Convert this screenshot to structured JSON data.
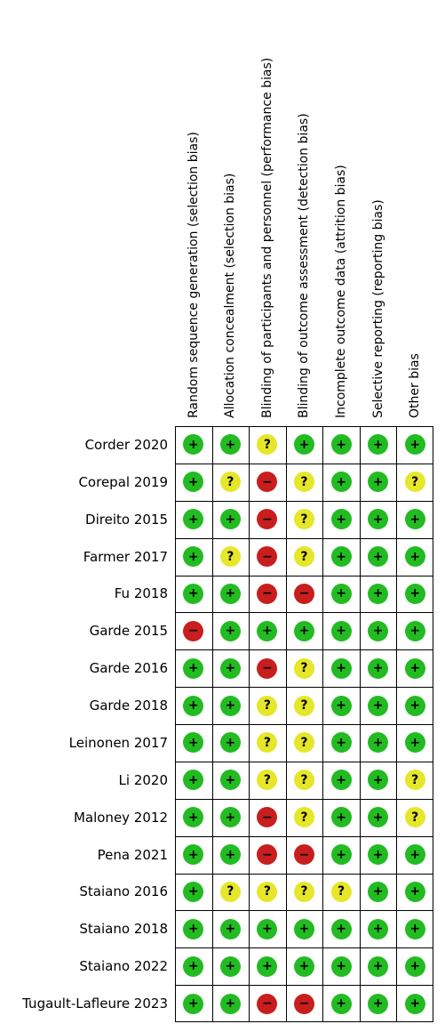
{
  "domains": [
    "Random sequence generation (selection bias)",
    "Allocation concealment (selection bias)",
    "Blinding of participants and personnel (performance bias)",
    "Blinding of outcome assessment (detection bias)",
    "Incomplete outcome data (attrition bias)",
    "Selective reporting (reporting bias)",
    "Other bias"
  ],
  "studies": [
    {
      "name": "Corder  2020",
      "ratings": [
        "low",
        "low",
        "unclear",
        "low",
        "low",
        "low",
        "low"
      ]
    },
    {
      "name": "Corepal 2019",
      "ratings": [
        "low",
        "unclear",
        "high",
        "unclear",
        "low",
        "low",
        "unclear"
      ]
    },
    {
      "name": "Direito  2015",
      "ratings": [
        "low",
        "low",
        "high",
        "unclear",
        "low",
        "low",
        "low"
      ]
    },
    {
      "name": "Farmer 2017",
      "ratings": [
        "low",
        "unclear",
        "high",
        "unclear",
        "low",
        "low",
        "low"
      ]
    },
    {
      "name": "Fu 2018",
      "ratings": [
        "low",
        "low",
        "high",
        "high",
        "low",
        "low",
        "low"
      ]
    },
    {
      "name": "Garde 2015",
      "ratings": [
        "high",
        "low",
        "low",
        "low",
        "low",
        "low",
        "low"
      ]
    },
    {
      "name": "Garde 2016",
      "ratings": [
        "low",
        "low",
        "high",
        "unclear",
        "low",
        "low",
        "low"
      ]
    },
    {
      "name": "Garde 2018",
      "ratings": [
        "low",
        "low",
        "unclear",
        "unclear",
        "low",
        "low",
        "low"
      ]
    },
    {
      "name": "Leinonen 2017",
      "ratings": [
        "low",
        "low",
        "unclear",
        "unclear",
        "low",
        "low",
        "low"
      ]
    },
    {
      "name": "Li  2020",
      "ratings": [
        "low",
        "low",
        "unclear",
        "unclear",
        "low",
        "low",
        "unclear"
      ]
    },
    {
      "name": "Maloney 2012",
      "ratings": [
        "low",
        "low",
        "high",
        "unclear",
        "low",
        "low",
        "unclear"
      ]
    },
    {
      "name": "Pena 2021",
      "ratings": [
        "low",
        "low",
        "high",
        "high",
        "low",
        "low",
        "low"
      ]
    },
    {
      "name": "Staiano 2016",
      "ratings": [
        "low",
        "unclear",
        "unclear",
        "unclear",
        "unclear",
        "low",
        "low"
      ]
    },
    {
      "name": "Staiano 2018",
      "ratings": [
        "low",
        "low",
        "low",
        "low",
        "low",
        "low",
        "low"
      ]
    },
    {
      "name": "Staiano 2022",
      "ratings": [
        "low",
        "low",
        "low",
        "low",
        "low",
        "low",
        "low"
      ]
    },
    {
      "name": "Tugault-Lafleure 2023",
      "ratings": [
        "low",
        "low",
        "high",
        "high",
        "low",
        "low",
        "low"
      ]
    }
  ],
  "symbols": {
    "low": "+",
    "unclear": "?",
    "high": "−"
  },
  "colors": {
    "low": "#22bb22",
    "unclear": "#e6e62a",
    "high": "#c81e1e"
  }
}
